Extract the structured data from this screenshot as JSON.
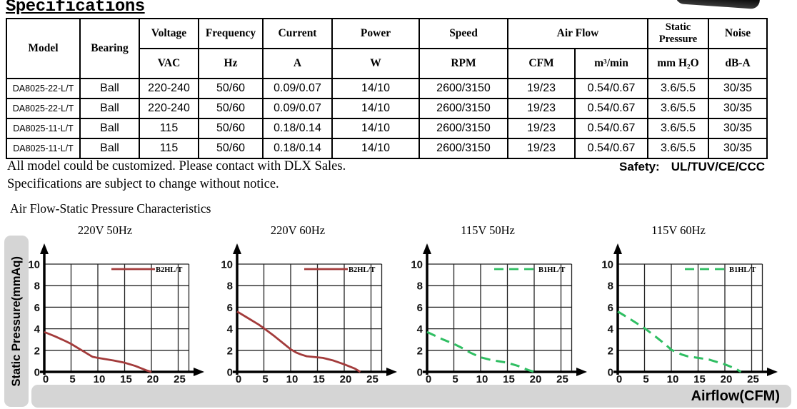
{
  "page": {
    "title": "Specifications"
  },
  "table": {
    "headers": {
      "model": "Model",
      "bearing": "Bearing",
      "voltage": "Voltage",
      "voltage_unit": "VAC",
      "frequency": "Frequency",
      "frequency_unit": "Hz",
      "current": "Current",
      "current_unit": "A",
      "power": "Power",
      "power_unit": "W",
      "speed": "Speed",
      "speed_unit": "RPM",
      "airflow": "Air Flow",
      "airflow_unit_cfm": "CFM",
      "airflow_unit_m3": "m³/min",
      "static_pressure": "Static Pressure",
      "static_pressure_unit": "mm H₂O",
      "noise": "Noise",
      "noise_unit": "dB-A"
    },
    "rows": [
      [
        "DA8025-22-L/T",
        "Ball",
        "220-240",
        "50/60",
        "0.09/0.07",
        "14/10",
        "2600/3150",
        "19/23",
        "0.54/0.67",
        "3.6/5.5",
        "30/35"
      ],
      [
        "DA8025-22-L/T",
        "Ball",
        "220-240",
        "50/60",
        "0.09/0.07",
        "14/10",
        "2600/3150",
        "19/23",
        "0.54/0.67",
        "3.6/5.5",
        "30/35"
      ],
      [
        "DA8025-11-L/T",
        "Ball",
        "115",
        "50/60",
        "0.18/0.14",
        "14/10",
        "2600/3150",
        "19/23",
        "0.54/0.67",
        "3.6/5.5",
        "30/35"
      ],
      [
        "DA8025-11-L/T",
        "Ball",
        "115",
        "50/60",
        "0.18/0.14",
        "14/10",
        "2600/3150",
        "19/23",
        "0.54/0.67",
        "3.6/5.5",
        "30/35"
      ]
    ]
  },
  "notes": {
    "line1": "All model could be customized. Please contact with DLX Sales.",
    "line2": "Specifications are subject to change without notice."
  },
  "safety": {
    "label": "Safety:",
    "value": "UL/TUV/CE/CCC"
  },
  "section_title": "Air Flow-Static Pressure Characteristics",
  "chart_data": [
    {
      "type": "line",
      "title": "220V 50Hz",
      "xlabel": "Airflow(CFM)",
      "ylabel": "Static Pressure(mmAq)",
      "xticks": [
        0,
        5,
        10,
        15,
        20,
        25
      ],
      "yticks": [
        0,
        2,
        4,
        6,
        8,
        10
      ],
      "xlim": [
        0,
        27
      ],
      "ylim": [
        0,
        10
      ],
      "grid": true,
      "legend_position": "top-right",
      "series": [
        {
          "name": "B2HL/T",
          "color": "#a33b3b",
          "style": "solid",
          "points": [
            [
              0,
              3.7
            ],
            [
              2,
              3.3
            ],
            [
              4,
              2.85
            ],
            [
              5,
              2.6
            ],
            [
              7,
              2.0
            ],
            [
              8,
              1.7
            ],
            [
              9,
              1.4
            ],
            [
              10,
              1.3
            ],
            [
              13,
              1.05
            ],
            [
              15,
              0.85
            ],
            [
              17,
              0.55
            ],
            [
              19,
              0.15
            ],
            [
              20,
              0
            ]
          ]
        }
      ]
    },
    {
      "type": "line",
      "title": "220V 60Hz",
      "xlabel": "Airflow(CFM)",
      "ylabel": "Static Pressure(mmAq)",
      "xticks": [
        0,
        5,
        10,
        15,
        20,
        25
      ],
      "yticks": [
        0,
        2,
        4,
        6,
        8,
        10
      ],
      "xlim": [
        0,
        27
      ],
      "ylim": [
        0,
        10
      ],
      "grid": true,
      "legend_position": "top-right",
      "series": [
        {
          "name": "B2HL/T",
          "color": "#a33b3b",
          "style": "solid",
          "points": [
            [
              0,
              5.6
            ],
            [
              2,
              5.0
            ],
            [
              4,
              4.4
            ],
            [
              5,
              4.05
            ],
            [
              7,
              3.3
            ],
            [
              9,
              2.5
            ],
            [
              10,
              2.1
            ],
            [
              11,
              1.8
            ],
            [
              12,
              1.6
            ],
            [
              13,
              1.45
            ],
            [
              15,
              1.35
            ],
            [
              16,
              1.3
            ],
            [
              18,
              1.05
            ],
            [
              20,
              0.7
            ],
            [
              22,
              0.3
            ],
            [
              23,
              0
            ]
          ]
        }
      ]
    },
    {
      "type": "line",
      "title": "115V 50Hz",
      "xlabel": "Airflow(CFM)",
      "ylabel": "Static Pressure(mmAq)",
      "xticks": [
        0,
        5,
        10,
        15,
        20,
        25
      ],
      "yticks": [
        0,
        2,
        4,
        6,
        8,
        10
      ],
      "xlim": [
        0,
        27
      ],
      "ylim": [
        0,
        10
      ],
      "grid": true,
      "legend_position": "top-right",
      "series": [
        {
          "name": "B1HL/T",
          "color": "#2fbe62",
          "style": "dashed",
          "points": [
            [
              0,
              3.7
            ],
            [
              3,
              3.0
            ],
            [
              5,
              2.6
            ],
            [
              7,
              2.1
            ],
            [
              8,
              1.8
            ],
            [
              10,
              1.35
            ],
            [
              12,
              1.1
            ],
            [
              15,
              0.85
            ],
            [
              17,
              0.55
            ],
            [
              19,
              0.15
            ],
            [
              20,
              0
            ]
          ]
        }
      ]
    },
    {
      "type": "line",
      "title": "115V 60Hz",
      "xlabel": "Airflow(CFM)",
      "ylabel": "Static Pressure(mmAq)",
      "xticks": [
        0,
        5,
        10,
        15,
        20,
        25
      ],
      "yticks": [
        0,
        2,
        4,
        6,
        8,
        10
      ],
      "xlim": [
        0,
        27
      ],
      "ylim": [
        0,
        10
      ],
      "grid": true,
      "legend_position": "top-right",
      "series": [
        {
          "name": "B1HL/T",
          "color": "#2fbe62",
          "style": "dashed",
          "points": [
            [
              0,
              5.6
            ],
            [
              2,
              5.0
            ],
            [
              5,
              4.05
            ],
            [
              7,
              3.3
            ],
            [
              9,
              2.5
            ],
            [
              10,
              2.05
            ],
            [
              12,
              1.6
            ],
            [
              13,
              1.45
            ],
            [
              15,
              1.3
            ],
            [
              17,
              1.15
            ],
            [
              20,
              0.7
            ],
            [
              22,
              0.3
            ],
            [
              23,
              0
            ]
          ]
        }
      ]
    }
  ]
}
